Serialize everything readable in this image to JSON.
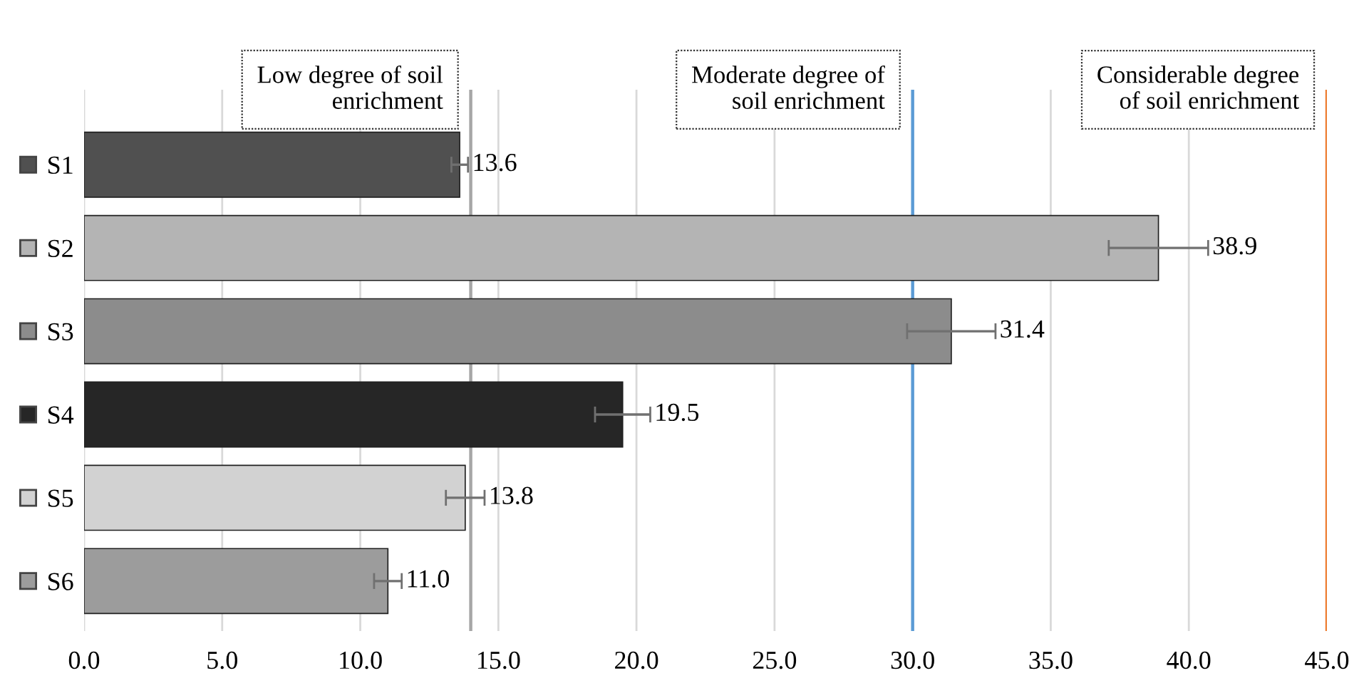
{
  "chart_data": {
    "type": "bar",
    "orientation": "horizontal",
    "categories": [
      "S1",
      "S2",
      "S3",
      "S4",
      "S5",
      "S6"
    ],
    "values": [
      13.6,
      38.9,
      31.4,
      19.5,
      13.8,
      11.0
    ],
    "colors": [
      "#505050",
      "#b4b4b4",
      "#8c8c8c",
      "#262626",
      "#d2d2d2",
      "#9c9c9c"
    ],
    "errors": [
      0.3,
      1.8,
      1.6,
      1.0,
      0.7,
      0.5
    ],
    "value_labels": [
      "13.6",
      "38.9",
      "31.4",
      "19.5",
      "13.8",
      "11.0"
    ],
    "xlim": [
      0,
      45
    ],
    "xticks": [
      {
        "value": 0,
        "label": "0.0"
      },
      {
        "value": 5,
        "label": "5.0"
      },
      {
        "value": 10,
        "label": "10.0"
      },
      {
        "value": 15,
        "label": "15.0"
      },
      {
        "value": 20,
        "label": "20.0"
      },
      {
        "value": 25,
        "label": "25.0"
      },
      {
        "value": 30,
        "label": "30.0"
      },
      {
        "value": 35,
        "label": "35.0"
      },
      {
        "value": 40,
        "label": "40.0"
      },
      {
        "value": 45,
        "label": "45.0"
      }
    ],
    "ref_lines": [
      {
        "axis": "x",
        "value": 14,
        "label": "Low degree of soil\nenrichment",
        "color": "#a6a6a6"
      },
      {
        "axis": "x",
        "value": 30,
        "label": "Moderate degree of\nsoil enrichment",
        "color": "#5b9bd5"
      },
      {
        "axis": "x",
        "value": 45,
        "label": "Considerable degree\nof soil enrichment",
        "color": "#ed7d31"
      }
    ],
    "grid": "x"
  }
}
